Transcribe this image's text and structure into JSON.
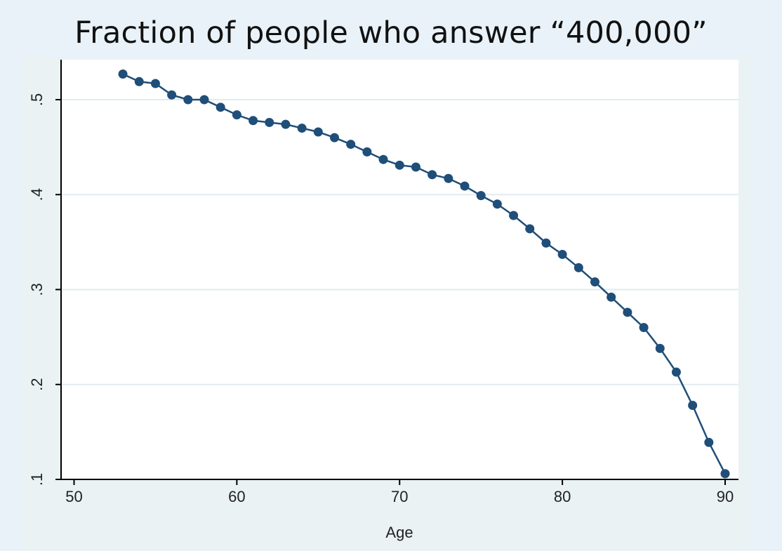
{
  "chart_data": {
    "type": "line",
    "title": "Fraction of people who answer “400,000”",
    "xlabel": "Age",
    "ylabel": "",
    "xlim": [
      49,
      91
    ],
    "ylim": [
      0.1,
      0.54
    ],
    "xticks": [
      50,
      60,
      70,
      80,
      90
    ],
    "xtick_labels": [
      "50",
      "60",
      "70",
      "80",
      "90"
    ],
    "yticks": [
      0.1,
      0.2,
      0.3,
      0.4,
      0.5
    ],
    "ytick_labels": [
      ".1",
      ".2",
      ".3",
      ".4",
      ".5"
    ],
    "grid": "horizontal",
    "colors": {
      "series": "#1f4e79",
      "grid": "#e2ebef",
      "axis": "#000000"
    },
    "series": [
      {
        "x": [
          53,
          54,
          55,
          56,
          57,
          58,
          59,
          60,
          61,
          62,
          63,
          64,
          65,
          66,
          67,
          68,
          69,
          70,
          71,
          72,
          73,
          74,
          75,
          76,
          77,
          78,
          79,
          80,
          81,
          82,
          83,
          84,
          85,
          86,
          87,
          88,
          89,
          90
        ],
        "y": [
          0.527,
          0.519,
          0.517,
          0.505,
          0.5,
          0.5,
          0.492,
          0.484,
          0.478,
          0.476,
          0.474,
          0.47,
          0.466,
          0.46,
          0.453,
          0.445,
          0.437,
          0.431,
          0.429,
          0.421,
          0.417,
          0.409,
          0.399,
          0.39,
          0.378,
          0.364,
          0.349,
          0.337,
          0.323,
          0.308,
          0.292,
          0.276,
          0.26,
          0.238,
          0.213,
          0.178,
          0.139,
          0.106
        ]
      }
    ]
  }
}
